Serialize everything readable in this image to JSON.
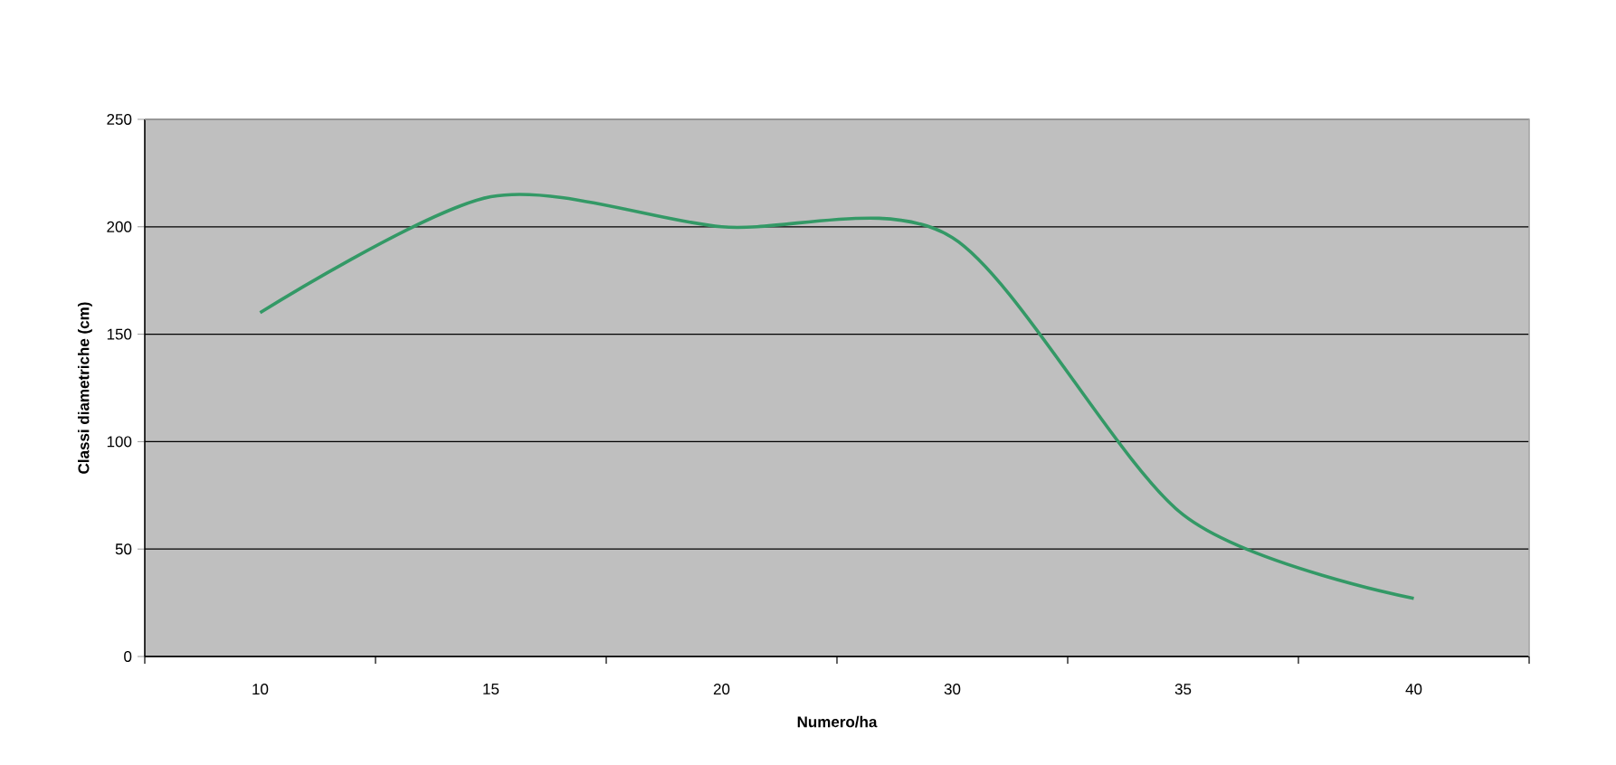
{
  "chart_data": {
    "type": "line",
    "xlabel": "Numero/ha",
    "ylabel": "Classi diametriche (cm)",
    "categories": [
      "10",
      "15",
      "20",
      "30",
      "35",
      "40"
    ],
    "series": [
      {
        "color": "#339966",
        "values": [
          160,
          214,
          200,
          195,
          66,
          27
        ]
      }
    ],
    "ylim": [
      0,
      250
    ],
    "yticks": [
      0,
      50,
      100,
      150,
      200,
      250
    ],
    "grid": "y",
    "marker": "none",
    "line_style": "solid"
  }
}
